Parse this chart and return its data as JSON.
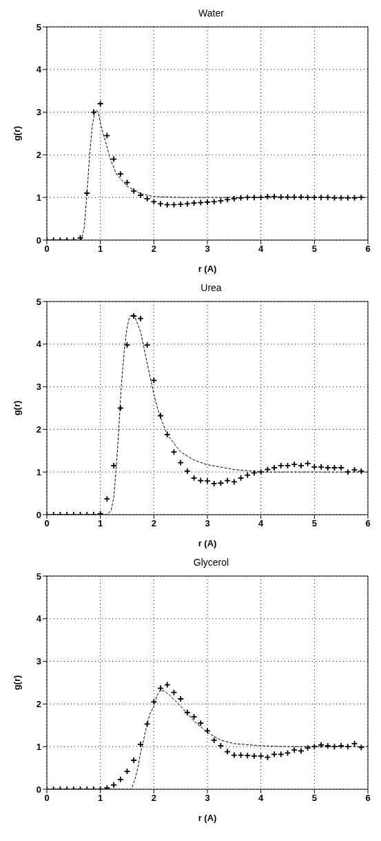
{
  "chart_data": [
    {
      "type": "line",
      "title": "Water",
      "xlabel": "r (A)",
      "ylabel": "g(r)",
      "xlim": [
        0,
        6
      ],
      "xticks": [
        0,
        1,
        2,
        3,
        4,
        5,
        6
      ],
      "ylim": [
        0,
        5
      ],
      "yticks": [
        0,
        1,
        2,
        3,
        4,
        5
      ],
      "grid": true,
      "series": [
        {
          "line_style": "dashed",
          "marker": "none",
          "color": "#000000",
          "x": [
            0,
            0.6,
            0.65,
            0.7,
            0.75,
            0.8,
            0.85,
            0.9,
            0.93,
            0.97,
            1.0,
            1.05,
            1.1,
            1.18,
            1.3,
            1.5,
            1.75,
            2.0,
            2.5,
            3,
            4,
            5,
            6
          ],
          "values": [
            0,
            0,
            0.02,
            0.3,
            1.1,
            2.0,
            2.7,
            3.0,
            3.05,
            2.95,
            2.75,
            2.5,
            2.3,
            1.92,
            1.55,
            1.26,
            1.09,
            1.02,
            1.0,
            1.0,
            1.0,
            1.0,
            1.0
          ]
        },
        {
          "type": "scatter",
          "marker": "cross",
          "color": "#000000",
          "x": [
            0,
            0.125,
            0.25,
            0.375,
            0.5,
            0.625,
            0.75,
            0.875,
            1.0,
            1.125,
            1.25,
            1.375,
            1.5,
            1.625,
            1.75,
            1.875,
            2.0,
            2.125,
            2.25,
            2.375,
            2.5,
            2.625,
            2.75,
            2.875,
            3.0,
            3.125,
            3.25,
            3.375,
            3.5,
            3.625,
            3.75,
            3.875,
            4.0,
            4.125,
            4.25,
            4.375,
            4.5,
            4.625,
            4.75,
            4.875,
            5.0,
            5.125,
            5.25,
            5.375,
            5.5,
            5.625,
            5.75,
            5.875
          ],
          "values": [
            0,
            0,
            0,
            0,
            0,
            0.05,
            1.1,
            3.0,
            3.2,
            2.45,
            1.9,
            1.55,
            1.35,
            1.15,
            1.05,
            0.97,
            0.9,
            0.85,
            0.83,
            0.83,
            0.84,
            0.85,
            0.87,
            0.88,
            0.89,
            0.9,
            0.92,
            0.95,
            0.97,
            0.99,
            1.0,
            1.0,
            1.0,
            1.02,
            1.02,
            1.01,
            1.01,
            1.01,
            1.01,
            1.0,
            1.0,
            1.0,
            1.0,
            0.99,
            0.99,
            0.99,
            0.99,
            1.0
          ]
        }
      ]
    },
    {
      "type": "line",
      "title": "Urea",
      "xlabel": "r (A)",
      "ylabel": "g(r)",
      "xlim": [
        0,
        6
      ],
      "xticks": [
        0,
        1,
        2,
        3,
        4,
        5,
        6
      ],
      "ylim": [
        0,
        5
      ],
      "yticks": [
        0,
        1,
        2,
        3,
        4,
        5
      ],
      "grid": true,
      "series": [
        {
          "line_style": "dashed",
          "marker": "none",
          "color": "#000000",
          "x": [
            0,
            1.1,
            1.15,
            1.2,
            1.25,
            1.29,
            1.33,
            1.39,
            1.45,
            1.5,
            1.55,
            1.6,
            1.65,
            1.75,
            1.85,
            2.0,
            2.1,
            2.25,
            2.5,
            2.75,
            3.0,
            3.5,
            4.0,
            5.0,
            6.0
          ],
          "values": [
            0,
            0,
            0.03,
            0.1,
            0.4,
            1.0,
            1.7,
            3.0,
            3.9,
            4.4,
            4.65,
            4.7,
            4.62,
            4.3,
            3.7,
            2.82,
            2.35,
            1.88,
            1.47,
            1.28,
            1.17,
            1.06,
            1.0,
            1.0,
            1.0
          ]
        },
        {
          "type": "scatter",
          "marker": "cross",
          "color": "#000000",
          "x": [
            0,
            0.125,
            0.25,
            0.375,
            0.5,
            0.625,
            0.75,
            0.875,
            1.0,
            1.125,
            1.25,
            1.375,
            1.5,
            1.625,
            1.75,
            1.875,
            2.0,
            2.125,
            2.25,
            2.375,
            2.5,
            2.625,
            2.75,
            2.875,
            3.0,
            3.125,
            3.25,
            3.375,
            3.5,
            3.625,
            3.75,
            3.875,
            4.0,
            4.125,
            4.25,
            4.375,
            4.5,
            4.625,
            4.75,
            4.875,
            5.0,
            5.125,
            5.25,
            5.375,
            5.5,
            5.625,
            5.75,
            5.875
          ],
          "values": [
            0,
            0,
            0,
            0,
            0,
            0,
            0,
            0,
            0.02,
            0.37,
            1.15,
            2.5,
            3.98,
            4.66,
            4.6,
            3.98,
            3.15,
            2.32,
            1.88,
            1.47,
            1.22,
            1.02,
            0.86,
            0.8,
            0.79,
            0.73,
            0.74,
            0.8,
            0.77,
            0.86,
            0.93,
            0.98,
            1.0,
            1.06,
            1.1,
            1.15,
            1.15,
            1.18,
            1.15,
            1.2,
            1.12,
            1.12,
            1.1,
            1.1,
            1.1,
            1.0,
            1.05,
            1.02
          ]
        }
      ]
    },
    {
      "type": "line",
      "title": "Glycerol",
      "xlabel": "r (A)",
      "ylabel": "g(r)",
      "xlim": [
        0,
        6
      ],
      "xticks": [
        0,
        1,
        2,
        3,
        4,
        5,
        6
      ],
      "ylim": [
        0,
        5
      ],
      "yticks": [
        0,
        1,
        2,
        3,
        4,
        5
      ],
      "grid": true,
      "series": [
        {
          "line_style": "dashed",
          "marker": "none",
          "color": "#000000",
          "x": [
            0,
            1.58,
            1.65,
            1.7,
            1.75,
            1.78,
            1.85,
            1.92,
            2.0,
            2.06,
            2.12,
            2.2,
            2.3,
            2.5,
            2.75,
            3.0,
            3.25,
            3.5,
            4.0,
            4.5,
            5.0,
            6.0
          ],
          "values": [
            0,
            0,
            0.25,
            0.5,
            0.85,
            1.0,
            1.4,
            1.75,
            1.95,
            2.2,
            2.33,
            2.3,
            2.2,
            1.95,
            1.6,
            1.33,
            1.15,
            1.07,
            1.02,
            1.0,
            1.0,
            1.0
          ]
        },
        {
          "type": "scatter",
          "marker": "cross",
          "color": "#000000",
          "x": [
            0,
            0.125,
            0.25,
            0.375,
            0.5,
            0.625,
            0.75,
            0.875,
            1.0,
            1.125,
            1.25,
            1.375,
            1.5,
            1.625,
            1.75,
            1.875,
            2.0,
            2.125,
            2.25,
            2.375,
            2.5,
            2.625,
            2.75,
            2.875,
            3.0,
            3.125,
            3.25,
            3.375,
            3.5,
            3.625,
            3.75,
            3.875,
            4.0,
            4.125,
            4.25,
            4.375,
            4.5,
            4.625,
            4.75,
            4.875,
            5.0,
            5.125,
            5.25,
            5.375,
            5.5,
            5.625,
            5.75,
            5.875
          ],
          "values": [
            0,
            0,
            0,
            0,
            0,
            0,
            0,
            0,
            0,
            0.03,
            0.1,
            0.23,
            0.42,
            0.68,
            1.05,
            1.53,
            2.05,
            2.37,
            2.45,
            2.27,
            2.12,
            1.8,
            1.7,
            1.55,
            1.37,
            1.15,
            1.02,
            0.88,
            0.8,
            0.8,
            0.79,
            0.78,
            0.78,
            0.75,
            0.82,
            0.82,
            0.85,
            0.92,
            0.9,
            0.97,
            1.0,
            1.04,
            1.02,
            1.0,
            1.02,
            1.0,
            1.07,
            0.98
          ]
        }
      ]
    }
  ]
}
